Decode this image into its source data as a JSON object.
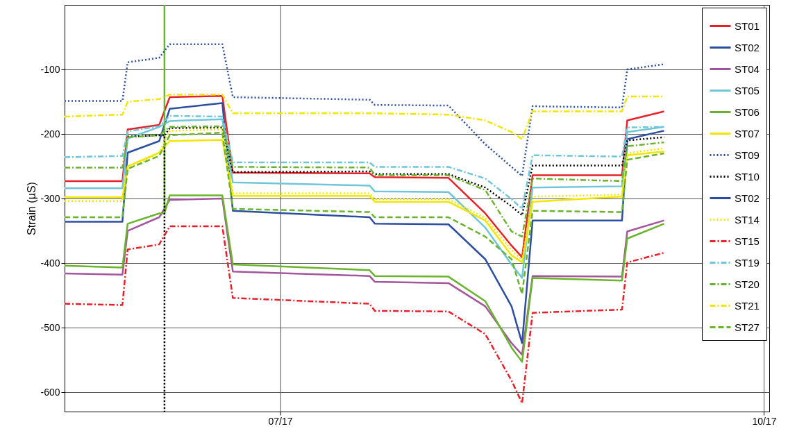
{
  "chart_data": {
    "type": "line",
    "ylabel": "Strain (µS)",
    "x": [
      "2017-05-21",
      "2017-06-01",
      "2017-06-02",
      "2017-06-08",
      "2017-06-10",
      "2017-06-20",
      "2017-06-22",
      "2017-07-18",
      "2017-07-19",
      "2017-08-02",
      "2017-08-09",
      "2017-08-14",
      "2017-08-16",
      "2017-08-18",
      "2017-09-04",
      "2017-09-05",
      "2017-09-12"
    ],
    "xlim": [
      "2017-05-21",
      "2017-10-02"
    ],
    "xticks": [
      {
        "value": "2017-07-01",
        "label": "07/17"
      },
      {
        "value": "2017-10-01",
        "label": "10/17"
      }
    ],
    "ylim": [
      -630,
      0
    ],
    "yticks": [
      -100,
      -200,
      -300,
      -400,
      -500,
      -600
    ],
    "grid": true,
    "legend": "top right",
    "series": [
      {
        "name": "ST01",
        "color": "#e8202a",
        "line_style": "solid",
        "values": [
          -273,
          -273,
          -193,
          -186,
          -143,
          -141,
          -260,
          -261,
          -267,
          -268,
          -323,
          -373,
          -391,
          -264,
          -264,
          -179,
          -165
        ]
      },
      {
        "name": "ST02",
        "color": "#2b4f9e",
        "line_style": "solid",
        "values": [
          -336,
          -336,
          -229,
          -211,
          -161,
          -152,
          -319,
          -329,
          -339,
          -340,
          -394,
          -467,
          -524,
          -334,
          -334,
          -208,
          -195
        ]
      },
      {
        "name": "ST04",
        "color": "#a3559e",
        "line_style": "solid",
        "values": [
          -416,
          -418,
          -350,
          -329,
          -302,
          -300,
          -413,
          -420,
          -429,
          -431,
          -467,
          -524,
          -542,
          -420,
          -421,
          -351,
          -334
        ]
      },
      {
        "name": "ST05",
        "color": "#6ec6d8",
        "line_style": "solid",
        "values": [
          -284,
          -284,
          -207,
          -189,
          -180,
          -177,
          -275,
          -280,
          -289,
          -290,
          -345,
          -402,
          -423,
          -283,
          -281,
          -197,
          -189
        ]
      },
      {
        "name": "ST06",
        "color": "#6ab42d",
        "line_style": "solid",
        "x": [
          "2017-05-21",
          "2017-06-01",
          "2017-06-02",
          "2017-06-08",
          "2017-06-09",
          "2017-06-09",
          "2017-06-09",
          "2017-06-10",
          "2017-06-20",
          "2017-06-22",
          "2017-07-18",
          "2017-07-19",
          "2017-08-02",
          "2017-08-09",
          "2017-08-14",
          "2017-08-16",
          "2017-08-18",
          "2017-09-04",
          "2017-09-05",
          "2017-09-12"
        ],
        "values": [
          -404,
          -407,
          -339,
          -323,
          -323,
          0,
          -323,
          -295,
          -295,
          -402,
          -411,
          -420,
          -421,
          -459,
          -531,
          -553,
          -423,
          -427,
          -362,
          -339
        ]
      },
      {
        "name": "ST07",
        "color": "#f2e600",
        "line_style": "solid",
        "values": [
          -298,
          -298,
          -250,
          -229,
          -211,
          -209,
          -296,
          -296,
          -305,
          -305,
          -334,
          -388,
          -399,
          -305,
          -297,
          -233,
          -227
        ]
      },
      {
        "name": "ST09",
        "color": "#2b4f9e",
        "line_style": "dotted",
        "values": [
          -149,
          -149,
          -89,
          -82,
          -61,
          -61,
          -143,
          -147,
          -155,
          -156,
          -216,
          -251,
          -265,
          -157,
          -159,
          -100,
          -92
        ]
      },
      {
        "name": "ST10",
        "color": "#000000",
        "line_style": "dotted",
        "x": [
          "2017-06-02",
          "2017-06-08",
          "2017-06-09",
          "2017-06-09",
          "2017-06-09",
          "2017-06-10",
          "2017-06-20",
          "2017-06-22",
          "2017-07-18",
          "2017-07-19",
          "2017-08-02",
          "2017-08-09",
          "2017-08-14",
          "2017-08-16",
          "2017-08-18",
          "2017-09-04",
          "2017-09-05",
          "2017-09-12"
        ],
        "values": [
          -204,
          -202,
          -202,
          -630,
          -202,
          -191,
          -190,
          -259,
          -258,
          -262,
          -262,
          -283,
          -312,
          -326,
          -249,
          -249,
          -210,
          -205
        ]
      },
      {
        "name": "ST02",
        "color": "#2b4f9e",
        "line_style": "solid",
        "values": [
          null,
          null,
          null,
          null,
          null,
          null,
          null,
          null,
          null,
          null,
          null,
          null,
          null,
          null,
          null,
          null,
          null
        ]
      },
      {
        "name": "ST14",
        "color": "#f2e600",
        "line_style": "dotted",
        "values": [
          -304,
          -304,
          -254,
          -229,
          -195,
          -193,
          -292,
          -292,
          -301,
          -301,
          -330,
          -380,
          -395,
          -297,
          -294,
          -230,
          -222
        ]
      },
      {
        "name": "ST15",
        "color": "#e8202a",
        "line_style": "dashdot",
        "values": [
          -463,
          -465,
          -379,
          -371,
          -343,
          -343,
          -454,
          -463,
          -474,
          -475,
          -510,
          -582,
          -617,
          -477,
          -472,
          -399,
          -384
        ]
      },
      {
        "name": "ST19",
        "color": "#6ec6d8",
        "line_style": "dashdot",
        "values": [
          -236,
          -234,
          -196,
          -188,
          -172,
          -173,
          -244,
          -244,
          -251,
          -251,
          -269,
          -301,
          -316,
          -233,
          -235,
          -190,
          -189
        ]
      },
      {
        "name": "ST20",
        "color": "#6ab42d",
        "line_style": "dashdot",
        "values": [
          -252,
          -252,
          -205,
          -202,
          -189,
          -188,
          -251,
          -252,
          -264,
          -264,
          -287,
          -351,
          -359,
          -269,
          -273,
          -219,
          -213
        ]
      },
      {
        "name": "ST21",
        "color": "#f2e600",
        "line_style": "dashdot",
        "values": [
          -173,
          -170,
          -150,
          -146,
          -139,
          -139,
          -168,
          -168,
          -168,
          -170,
          -179,
          -197,
          -208,
          -165,
          -165,
          -142,
          -142
        ]
      },
      {
        "name": "ST27",
        "color": "#6ab42d",
        "line_style": "dashed",
        "values": [
          -329,
          -329,
          -254,
          -234,
          -202,
          -198,
          -316,
          -321,
          -329,
          -329,
          -359,
          -394,
          -448,
          -319,
          -321,
          -240,
          -230
        ]
      }
    ]
  }
}
